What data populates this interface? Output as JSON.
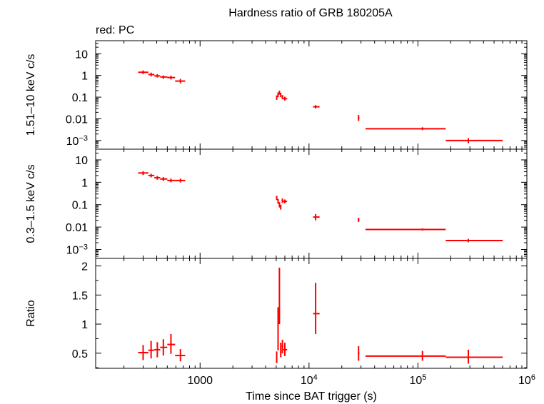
{
  "title": "Hardness ratio of GRB 180205A",
  "legend_text": "red: PC",
  "colors": {
    "series": "#ff0000",
    "axes": "#000000"
  },
  "chart_data": [
    {
      "type": "scatter",
      "panel": "top",
      "ylabel": "1.51–10 keV c/s",
      "xscale": "log",
      "yscale": "log",
      "xlim": [
        110,
        1000000
      ],
      "ylim": [
        0.0004,
        40
      ],
      "yticks": [
        {
          "v": 10,
          "label": "10"
        },
        {
          "v": 1,
          "label": "1"
        },
        {
          "v": 0.1,
          "label": "0.1"
        },
        {
          "v": 0.01,
          "label": "0.01"
        },
        {
          "v": 0.001,
          "label": "10",
          "sup": "−3"
        }
      ],
      "series": [
        {
          "points": [
            {
              "x": 300,
              "y": 1.4,
              "xlo": 270,
              "xhi": 335,
              "ylo": 1.15,
              "yhi": 1.7
            },
            {
              "x": 355,
              "y": 1.1,
              "xlo": 335,
              "xhi": 380,
              "ylo": 0.9,
              "yhi": 1.35
            },
            {
              "x": 405,
              "y": 0.95,
              "xlo": 380,
              "xhi": 430,
              "ylo": 0.8,
              "yhi": 1.15
            },
            {
              "x": 460,
              "y": 0.85,
              "xlo": 430,
              "xhi": 500,
              "ylo": 0.7,
              "yhi": 1.0
            },
            {
              "x": 540,
              "y": 0.8,
              "xlo": 500,
              "xhi": 590,
              "ylo": 0.65,
              "yhi": 0.97
            },
            {
              "x": 660,
              "y": 0.55,
              "xlo": 590,
              "xhi": 730,
              "ylo": 0.43,
              "yhi": 0.7
            },
            {
              "x": 5050,
              "y": 0.095,
              "xlo": 5000,
              "xhi": 5100,
              "ylo": 0.075,
              "yhi": 0.12
            },
            {
              "x": 5200,
              "y": 0.13,
              "xlo": 5150,
              "xhi": 5250,
              "ylo": 0.1,
              "yhi": 0.165
            },
            {
              "x": 5350,
              "y": 0.165,
              "xlo": 5300,
              "xhi": 5400,
              "ylo": 0.13,
              "yhi": 0.2
            },
            {
              "x": 5500,
              "y": 0.13,
              "xlo": 5450,
              "xhi": 5550,
              "ylo": 0.1,
              "yhi": 0.16
            },
            {
              "x": 5700,
              "y": 0.1,
              "xlo": 5600,
              "xhi": 5800,
              "ylo": 0.08,
              "yhi": 0.125
            },
            {
              "x": 6000,
              "y": 0.085,
              "xlo": 5800,
              "xhi": 6300,
              "ylo": 0.07,
              "yhi": 0.105
            },
            {
              "x": 11500,
              "y": 0.036,
              "xlo": 10900,
              "xhi": 12500,
              "ylo": 0.03,
              "yhi": 0.043
            },
            {
              "x": 28500,
              "y": 0.011,
              "xlo": 28000,
              "xhi": 29000,
              "ylo": 0.008,
              "yhi": 0.015
            },
            {
              "x": 110000,
              "y": 0.0035,
              "xlo": 33000,
              "xhi": 180000,
              "ylo": 0.003,
              "yhi": 0.0041
            },
            {
              "x": 290000,
              "y": 0.001,
              "xlo": 180000,
              "xhi": 600000,
              "ylo": 0.00075,
              "yhi": 0.0013
            }
          ]
        }
      ]
    },
    {
      "type": "scatter",
      "panel": "middle",
      "ylabel": "0.3–1.5 keV c/s",
      "xscale": "log",
      "yscale": "log",
      "xlim": [
        110,
        1000000
      ],
      "ylim": [
        0.0004,
        30
      ],
      "yticks": [
        {
          "v": 10,
          "label": "10"
        },
        {
          "v": 1,
          "label": "1"
        },
        {
          "v": 0.1,
          "label": "0.1"
        },
        {
          "v": 0.01,
          "label": "0.01"
        },
        {
          "v": 0.001,
          "label": "10",
          "sup": "−3"
        }
      ],
      "series": [
        {
          "points": [
            {
              "x": 300,
              "y": 2.6,
              "xlo": 270,
              "xhi": 335,
              "ylo": 2.1,
              "yhi": 3.1
            },
            {
              "x": 355,
              "y": 2.0,
              "xlo": 335,
              "xhi": 380,
              "ylo": 1.65,
              "yhi": 2.4
            },
            {
              "x": 405,
              "y": 1.6,
              "xlo": 380,
              "xhi": 430,
              "ylo": 1.3,
              "yhi": 1.9
            },
            {
              "x": 460,
              "y": 1.4,
              "xlo": 430,
              "xhi": 500,
              "ylo": 1.15,
              "yhi": 1.7
            },
            {
              "x": 540,
              "y": 1.2,
              "xlo": 500,
              "xhi": 590,
              "ylo": 1.0,
              "yhi": 1.45
            },
            {
              "x": 660,
              "y": 1.2,
              "xlo": 590,
              "xhi": 730,
              "ylo": 0.98,
              "yhi": 1.45
            },
            {
              "x": 5050,
              "y": 0.2,
              "xlo": 5000,
              "xhi": 5100,
              "ylo": 0.16,
              "yhi": 0.25
            },
            {
              "x": 5200,
              "y": 0.14,
              "xlo": 5150,
              "xhi": 5250,
              "ylo": 0.11,
              "yhi": 0.18
            },
            {
              "x": 5350,
              "y": 0.1,
              "xlo": 5300,
              "xhi": 5400,
              "ylo": 0.075,
              "yhi": 0.13
            },
            {
              "x": 5500,
              "y": 0.08,
              "xlo": 5450,
              "xhi": 5550,
              "ylo": 0.06,
              "yhi": 0.1
            },
            {
              "x": 5700,
              "y": 0.15,
              "xlo": 5600,
              "xhi": 5800,
              "ylo": 0.12,
              "yhi": 0.19
            },
            {
              "x": 6000,
              "y": 0.14,
              "xlo": 5800,
              "xhi": 6300,
              "ylo": 0.115,
              "yhi": 0.17
            },
            {
              "x": 11500,
              "y": 0.028,
              "xlo": 10900,
              "xhi": 12500,
              "ylo": 0.02,
              "yhi": 0.038
            },
            {
              "x": 28500,
              "y": 0.021,
              "xlo": 28000,
              "xhi": 29000,
              "ylo": 0.017,
              "yhi": 0.026
            },
            {
              "x": 110000,
              "y": 0.0078,
              "xlo": 33000,
              "xhi": 180000,
              "ylo": 0.007,
              "yhi": 0.0087
            },
            {
              "x": 290000,
              "y": 0.0025,
              "xlo": 180000,
              "xhi": 600000,
              "ylo": 0.0021,
              "yhi": 0.003
            }
          ]
        }
      ]
    },
    {
      "type": "scatter",
      "panel": "bottom",
      "ylabel": "Ratio",
      "xlabel": "Time since BAT trigger (s)",
      "xscale": "log",
      "yscale": "linear",
      "xlim": [
        110,
        1000000
      ],
      "ylim": [
        0.24,
        2.13
      ],
      "yticks": [
        {
          "v": 2,
          "label": "2"
        },
        {
          "v": 1.5,
          "label": "1.5"
        },
        {
          "v": 1,
          "label": "1"
        },
        {
          "v": 0.5,
          "label": "0.5"
        }
      ],
      "xticks": [
        {
          "v": 1000,
          "label": "1000"
        },
        {
          "v": 10000,
          "label": "10",
          "sup": "4"
        },
        {
          "v": 100000,
          "label": "10",
          "sup": "5"
        },
        {
          "v": 1000000,
          "label": "10",
          "sup": "6"
        }
      ],
      "series": [
        {
          "points": [
            {
              "x": 300,
              "y": 0.51,
              "xlo": 270,
              "xhi": 335,
              "ylo": 0.38,
              "yhi": 0.64
            },
            {
              "x": 355,
              "y": 0.55,
              "xlo": 335,
              "xhi": 380,
              "ylo": 0.41,
              "yhi": 0.71
            },
            {
              "x": 405,
              "y": 0.56,
              "xlo": 380,
              "xhi": 430,
              "ylo": 0.43,
              "yhi": 0.69
            },
            {
              "x": 460,
              "y": 0.6,
              "xlo": 430,
              "xhi": 500,
              "ylo": 0.46,
              "yhi": 0.74
            },
            {
              "x": 540,
              "y": 0.65,
              "xlo": 500,
              "xhi": 590,
              "ylo": 0.49,
              "yhi": 0.83
            },
            {
              "x": 660,
              "y": 0.46,
              "xlo": 590,
              "xhi": 730,
              "ylo": 0.36,
              "yhi": 0.57
            },
            {
              "x": 5050,
              "y": 0.43,
              "xlo": 5000,
              "xhi": 5100,
              "ylo": 0.33,
              "yhi": 0.53
            },
            {
              "x": 5200,
              "y": 0.97,
              "xlo": 5150,
              "xhi": 5250,
              "ylo": 0.55,
              "yhi": 1.29
            },
            {
              "x": 5350,
              "y": 1.52,
              "xlo": 5300,
              "xhi": 5400,
              "ylo": 1.0,
              "yhi": 1.97
            },
            {
              "x": 5500,
              "y": 0.55,
              "xlo": 5450,
              "xhi": 5550,
              "ylo": 0.43,
              "yhi": 0.68
            },
            {
              "x": 5700,
              "y": 0.62,
              "xlo": 5600,
              "xhi": 5800,
              "ylo": 0.5,
              "yhi": 0.73
            },
            {
              "x": 6000,
              "y": 0.56,
              "xlo": 5800,
              "xhi": 6300,
              "ylo": 0.45,
              "yhi": 0.68
            },
            {
              "x": 11500,
              "y": 1.18,
              "xlo": 10900,
              "xhi": 12500,
              "ylo": 0.83,
              "yhi": 1.71
            },
            {
              "x": 28500,
              "y": 0.5,
              "xlo": 28000,
              "xhi": 29000,
              "ylo": 0.37,
              "yhi": 0.62
            },
            {
              "x": 110000,
              "y": 0.45,
              "xlo": 33000,
              "xhi": 180000,
              "ylo": 0.37,
              "yhi": 0.54
            },
            {
              "x": 290000,
              "y": 0.43,
              "xlo": 180000,
              "xhi": 600000,
              "ylo": 0.32,
              "yhi": 0.56
            }
          ]
        }
      ]
    }
  ]
}
